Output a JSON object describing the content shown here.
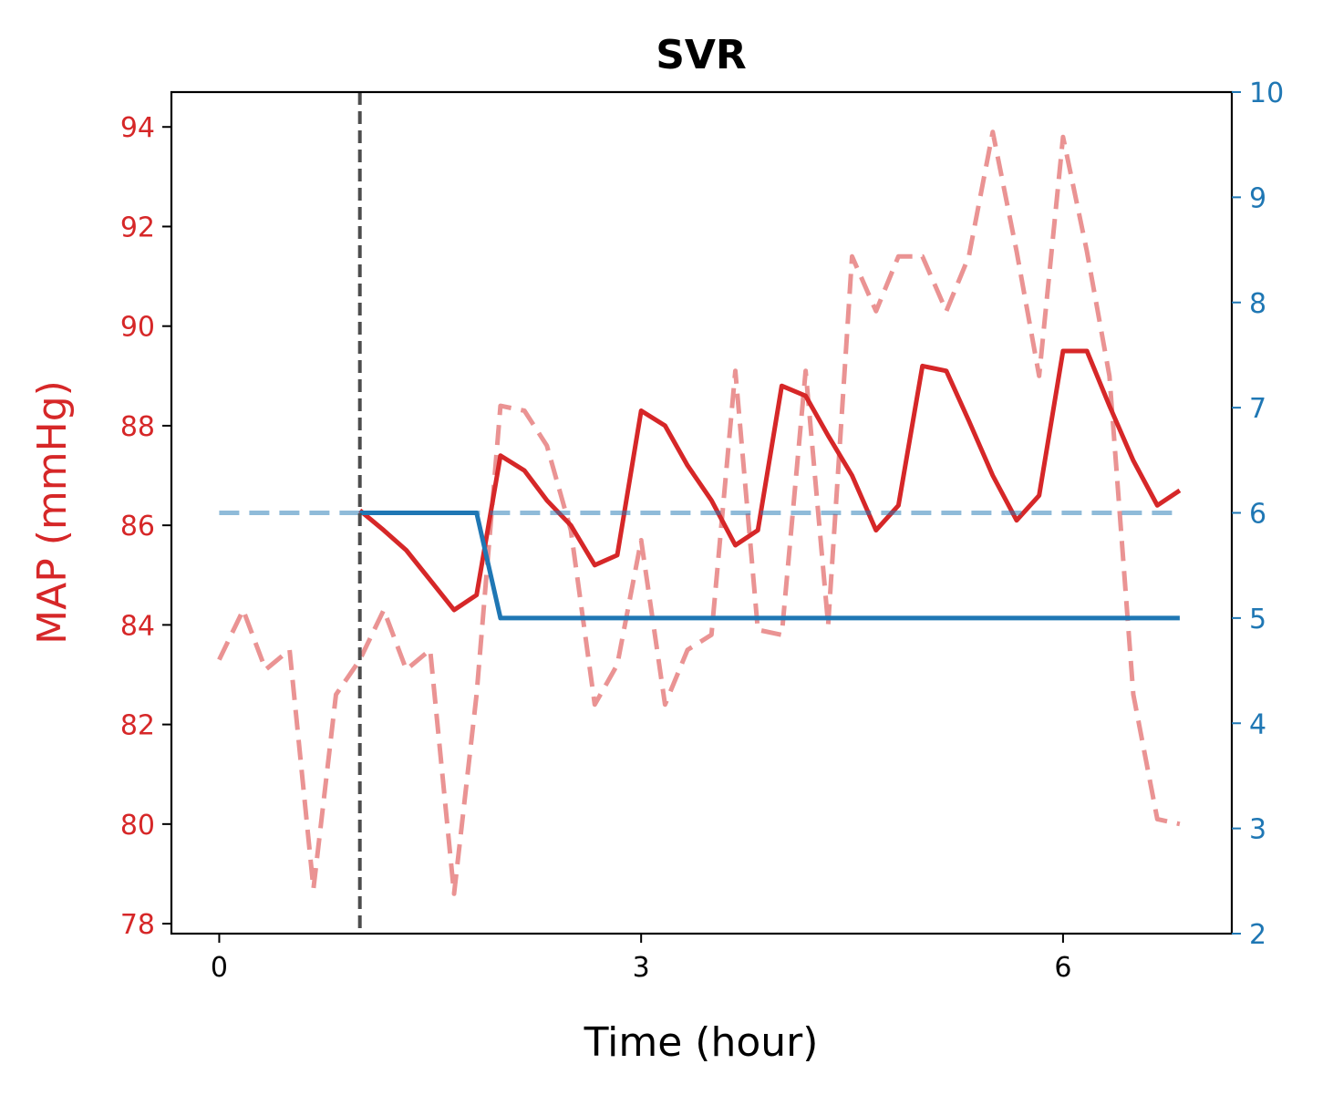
{
  "chart_data": {
    "type": "line",
    "title": "SVR",
    "xlabel": "Time (hour)",
    "ylabel": "MAP (mmHg)",
    "xlim": [
      -0.34,
      7.2
    ],
    "ylim": [
      77.8,
      94.7
    ],
    "y2lim": [
      2,
      10
    ],
    "xticks": [
      "0",
      "3",
      "6"
    ],
    "yticks": [
      "78",
      "80",
      "82",
      "84",
      "86",
      "88",
      "90",
      "92",
      "94"
    ],
    "y2ticks": [
      "2",
      "3",
      "4",
      "5",
      "6",
      "7",
      "8",
      "9",
      "10"
    ],
    "colors": {
      "map": "#d62728",
      "svr": "#1f77b4",
      "vline": "#4d4d4d"
    },
    "vline_x": 1.0,
    "series": [
      {
        "axis": "left",
        "style": "dashed",
        "x": [
          0.0,
          0.17,
          0.33,
          0.5,
          0.67,
          0.83,
          1.0,
          1.17,
          1.33,
          1.5,
          1.67,
          1.83,
          2.0,
          2.17,
          2.33,
          2.5,
          2.67,
          2.83,
          3.0,
          3.17,
          3.33,
          3.5,
          3.67,
          3.83,
          4.0,
          4.17,
          4.33,
          4.5,
          4.67,
          4.83,
          5.0,
          5.17,
          5.33,
          5.5,
          5.67,
          5.83,
          6.0,
          6.17,
          6.33,
          6.5,
          6.67,
          6.83
        ],
        "values": [
          83.3,
          84.3,
          83.1,
          83.5,
          78.7,
          82.6,
          83.3,
          84.3,
          83.1,
          83.5,
          78.6,
          82.6,
          88.4,
          88.3,
          87.6,
          85.9,
          82.4,
          83.2,
          85.7,
          82.4,
          83.5,
          83.8,
          89.1,
          83.9,
          83.8,
          89.1,
          84.0,
          91.4,
          90.3,
          91.4,
          91.4,
          90.3,
          91.4,
          93.9,
          91.5,
          89.0,
          93.8,
          91.5,
          89.0,
          82.6,
          80.1,
          80.0
        ]
      },
      {
        "axis": "left",
        "style": "solid",
        "x": [
          1.0,
          1.17,
          1.33,
          1.5,
          1.67,
          1.83,
          2.0,
          2.17,
          2.33,
          2.5,
          2.67,
          2.83,
          3.0,
          3.17,
          3.33,
          3.5,
          3.67,
          3.83,
          4.0,
          4.17,
          4.33,
          4.5,
          4.67,
          4.83,
          5.0,
          5.17,
          5.33,
          5.5,
          5.67,
          5.83,
          6.0,
          6.17,
          6.33,
          6.5,
          6.67,
          6.83
        ],
        "values": [
          86.3,
          85.9,
          85.5,
          84.9,
          84.3,
          84.6,
          87.4,
          87.1,
          86.5,
          86.0,
          85.2,
          85.4,
          88.3,
          88.0,
          87.2,
          86.5,
          85.6,
          85.9,
          88.8,
          88.6,
          87.8,
          87.0,
          85.9,
          86.4,
          89.2,
          89.1,
          88.1,
          87.0,
          86.1,
          86.6,
          89.5,
          89.5,
          88.4,
          87.3,
          86.4,
          86.7
        ]
      },
      {
        "axis": "right",
        "style": "dashed",
        "x": [
          0.0,
          6.83
        ],
        "values": [
          6.0,
          6.0
        ]
      },
      {
        "axis": "right",
        "style": "solid",
        "x": [
          1.0,
          1.83,
          2.0,
          6.83
        ],
        "values": [
          6.0,
          6.0,
          5.0,
          5.0
        ]
      }
    ]
  }
}
